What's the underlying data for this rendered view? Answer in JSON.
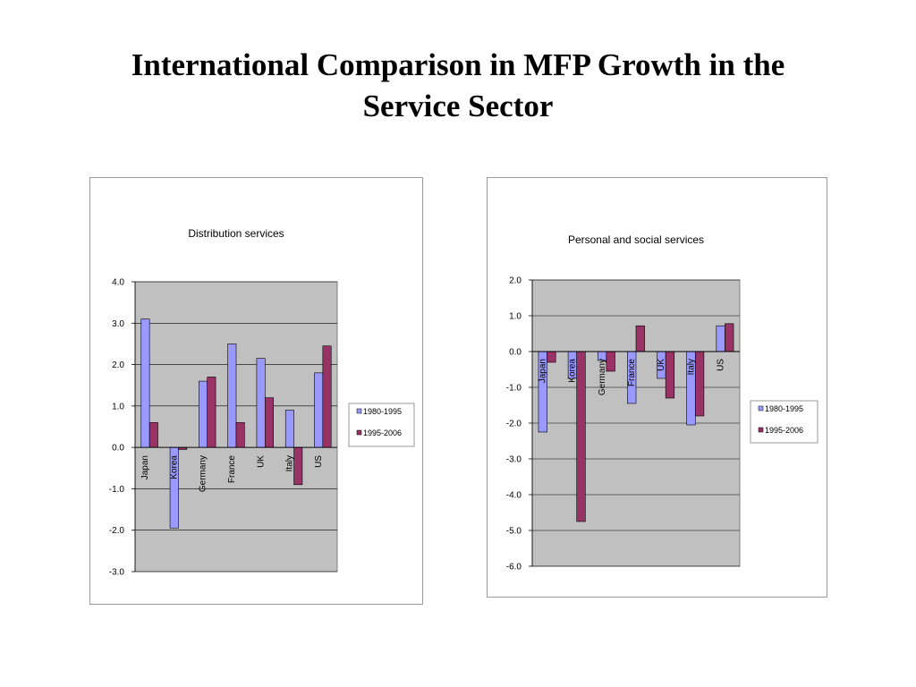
{
  "slide": {
    "title_line1": "International Comparison in MFP Growth in the",
    "title_line2": "Service Sector"
  },
  "colors": {
    "series1": "#9999ff",
    "series2": "#993366",
    "plot_bg": "#c0c0c0",
    "grid": "#000000"
  },
  "chart_data": [
    {
      "type": "bar",
      "title": "Distribution services",
      "categories": [
        "Japan",
        "Korea",
        "Germany",
        "France",
        "UK",
        "Italy",
        "US"
      ],
      "series": [
        {
          "name": "1980-1995",
          "values": [
            3.1,
            -1.95,
            1.6,
            2.5,
            2.15,
            0.9,
            1.8
          ]
        },
        {
          "name": "1995-2006",
          "values": [
            0.6,
            -0.05,
            1.7,
            0.6,
            1.2,
            -0.9,
            2.45
          ]
        }
      ],
      "ylim": [
        -3.0,
        4.0
      ],
      "yticks": [
        "4.0",
        "3.0",
        "2.0",
        "1.0",
        "0.0",
        "-1.0",
        "-2.0",
        "-3.0"
      ],
      "grid": true,
      "legend_position": "right"
    },
    {
      "type": "bar",
      "title": "Personal and social services",
      "categories": [
        "Japan",
        "Korea",
        "Germany",
        "France",
        "UK",
        "Italy",
        "US"
      ],
      "series": [
        {
          "name": "1980-1995",
          "values": [
            -2.25,
            -0.75,
            -0.25,
            -1.45,
            -0.75,
            -2.05,
            0.72
          ]
        },
        {
          "name": "1995-2006",
          "values": [
            -0.3,
            -4.75,
            -0.55,
            0.72,
            -1.3,
            -1.8,
            0.78
          ]
        }
      ],
      "ylim": [
        -6.0,
        2.0
      ],
      "yticks": [
        "2.0",
        "1.0",
        "0.0",
        "-1.0",
        "-2.0",
        "-3.0",
        "-4.0",
        "-5.0",
        "-6.0"
      ],
      "grid": true,
      "legend_position": "right"
    }
  ]
}
